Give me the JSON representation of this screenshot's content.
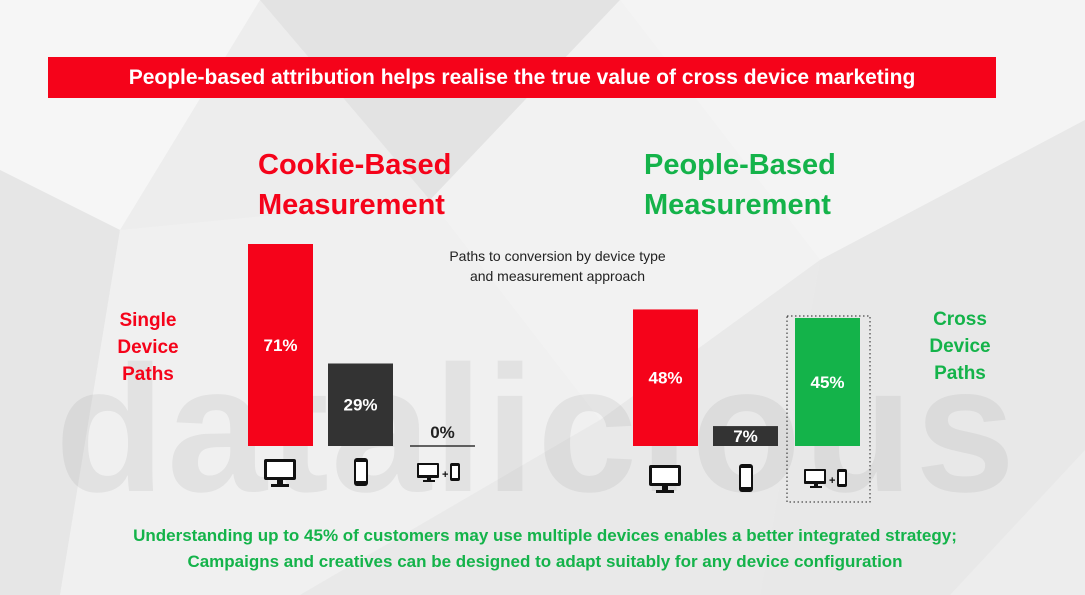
{
  "banner": "People-based attribution helps realise the true value of cross device marketing",
  "watermark": "datalicious",
  "chart_data": [
    {
      "type": "bar",
      "title": "Cookie-Based Measurement",
      "subtitle": "Paths to conversion by device type and measurement approach",
      "row_label": "Single Device Paths",
      "categories": [
        "desktop",
        "mobile",
        "desktop + mobile"
      ],
      "values": [
        71,
        29,
        0
      ],
      "labels": [
        "71%",
        "29%",
        "0%"
      ],
      "colors": [
        "#f5031a",
        "#333333",
        "#333333"
      ]
    },
    {
      "type": "bar",
      "title": "People-Based Measurement",
      "row_label": "Cross Device Paths",
      "categories": [
        "desktop",
        "mobile",
        "desktop + mobile"
      ],
      "values": [
        48,
        7,
        45
      ],
      "labels": [
        "48%",
        "7%",
        "45%"
      ],
      "colors": [
        "#f5031a",
        "#333333",
        "#14b34a"
      ]
    }
  ],
  "headings": {
    "cookie_line1": "Cookie-Based",
    "cookie_line2": "Measurement",
    "people_line1": "People-Based",
    "people_line2": "Measurement"
  },
  "caption": {
    "line1": "Paths to conversion by device type",
    "line2": "and measurement approach"
  },
  "side_labels": {
    "left": [
      "Single",
      "Device",
      "Paths"
    ],
    "right": [
      "Cross",
      "Device",
      "Paths"
    ]
  },
  "icons": [
    "desktop-icon",
    "mobile-icon",
    "desktop-plus-mobile-icon"
  ],
  "footer": {
    "line1": "Understanding up to 45% of customers may use multiple devices enables a better integrated strategy;",
    "line2": "Campaigns and creatives can be designed to adapt suitably for any device configuration"
  }
}
